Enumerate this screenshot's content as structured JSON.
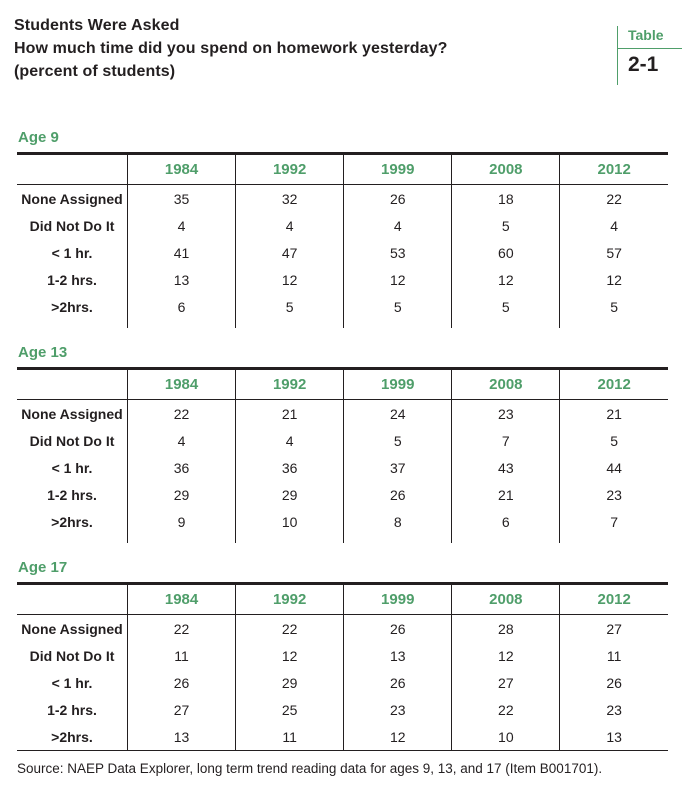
{
  "header": {
    "title_line1": "Students Were Asked",
    "title_line2": "How much time did you spend on homework yesterday?",
    "title_line3": "(percent of students)",
    "badge_label": "Table",
    "badge_number": "2-1"
  },
  "colors": {
    "accent_green": "#4f9e6a",
    "text_black": "#231f20"
  },
  "tables": [
    {
      "age_label": "Age 9",
      "columns": [
        "1984",
        "1992",
        "1999",
        "2008",
        "2012"
      ],
      "rows": [
        {
          "label": "None Assigned",
          "values": [
            35,
            32,
            26,
            18,
            22
          ]
        },
        {
          "label": "Did Not Do It",
          "values": [
            4,
            4,
            4,
            5,
            4
          ]
        },
        {
          "label": "< 1 hr.",
          "values": [
            41,
            47,
            53,
            60,
            57
          ]
        },
        {
          "label": "1-2 hrs.",
          "values": [
            13,
            12,
            12,
            12,
            12
          ]
        },
        {
          "label": ">2hrs.",
          "values": [
            6,
            5,
            5,
            5,
            5
          ]
        }
      ]
    },
    {
      "age_label": "Age 13",
      "columns": [
        "1984",
        "1992",
        "1999",
        "2008",
        "2012"
      ],
      "rows": [
        {
          "label": "None Assigned",
          "values": [
            22,
            21,
            24,
            23,
            21
          ]
        },
        {
          "label": "Did Not Do It",
          "values": [
            4,
            4,
            5,
            7,
            5
          ]
        },
        {
          "label": "< 1 hr.",
          "values": [
            36,
            36,
            37,
            43,
            44
          ]
        },
        {
          "label": "1-2 hrs.",
          "values": [
            29,
            29,
            26,
            21,
            23
          ]
        },
        {
          "label": ">2hrs.",
          "values": [
            9,
            10,
            8,
            6,
            7
          ]
        }
      ]
    },
    {
      "age_label": "Age 17",
      "columns": [
        "1984",
        "1992",
        "1999",
        "2008",
        "2012"
      ],
      "rows": [
        {
          "label": "None Assigned",
          "values": [
            22,
            22,
            26,
            28,
            27
          ]
        },
        {
          "label": "Did Not Do It",
          "values": [
            11,
            12,
            13,
            12,
            11
          ]
        },
        {
          "label": "< 1 hr.",
          "values": [
            26,
            29,
            26,
            27,
            26
          ]
        },
        {
          "label": "1-2 hrs.",
          "values": [
            27,
            25,
            23,
            22,
            23
          ]
        },
        {
          "label": ">2hrs.",
          "values": [
            13,
            11,
            12,
            10,
            13
          ]
        }
      ]
    }
  ],
  "source": "Source: NAEP Data Explorer, long term trend reading data for ages 9, 13, and 17 (Item B001701)."
}
